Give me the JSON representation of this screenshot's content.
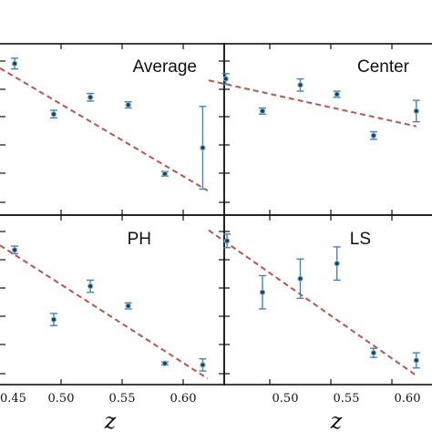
{
  "chart_data": [
    {
      "type": "scatter",
      "title": "Average",
      "xlabel": "z",
      "xlim": [
        0.45,
        0.62
      ],
      "ylim": [
        0,
        1
      ],
      "points": [
        {
          "x": 0.462,
          "y": 0.93,
          "err": 0.035
        },
        {
          "x": 0.494,
          "y": 0.6,
          "err": 0.025
        },
        {
          "x": 0.524,
          "y": 0.71,
          "err": 0.025
        },
        {
          "x": 0.555,
          "y": 0.66,
          "err": 0.02
        },
        {
          "x": 0.585,
          "y": 0.21,
          "err": 0.015
        },
        {
          "x": 0.616,
          "y": 0.38,
          "err": 0.27
        }
      ],
      "fit": {
        "x": [
          0.45,
          0.62
        ],
        "y": [
          0.9,
          0.1
        ]
      }
    },
    {
      "type": "scatter",
      "title": "Center",
      "xlabel": "z",
      "xlim": [
        0.45,
        0.62
      ],
      "ylim": [
        0,
        1
      ],
      "points": [
        {
          "x": 0.464,
          "y": 0.83,
          "err": 0.035
        },
        {
          "x": 0.494,
          "y": 0.62,
          "err": 0.02
        },
        {
          "x": 0.525,
          "y": 0.79,
          "err": 0.04
        },
        {
          "x": 0.555,
          "y": 0.73,
          "err": 0.02
        },
        {
          "x": 0.585,
          "y": 0.46,
          "err": 0.025
        },
        {
          "x": 0.62,
          "y": 0.62,
          "err": 0.07
        }
      ],
      "fit": {
        "x": [
          0.45,
          0.62
        ],
        "y": [
          0.82,
          0.52
        ]
      }
    },
    {
      "type": "scatter",
      "title": "PH",
      "xlabel": "z",
      "xlim": [
        0.45,
        0.62
      ],
      "ylim": [
        0,
        1
      ],
      "points": [
        {
          "x": 0.462,
          "y": 0.83,
          "err": 0.025
        },
        {
          "x": 0.494,
          "y": 0.37,
          "err": 0.04
        },
        {
          "x": 0.524,
          "y": 0.59,
          "err": 0.04
        },
        {
          "x": 0.555,
          "y": 0.46,
          "err": 0.02
        },
        {
          "x": 0.585,
          "y": 0.08,
          "err": 0.01
        },
        {
          "x": 0.616,
          "y": 0.07,
          "err": 0.04
        }
      ],
      "fit": {
        "x": [
          0.45,
          0.62
        ],
        "y": [
          0.86,
          -0.02
        ]
      }
    },
    {
      "type": "scatter",
      "title": "LS",
      "xlabel": "z",
      "xlim": [
        0.45,
        0.62
      ],
      "ylim": [
        0,
        1
      ],
      "points": [
        {
          "x": 0.465,
          "y": 0.89,
          "err": 0.045
        },
        {
          "x": 0.494,
          "y": 0.55,
          "err": 0.11
        },
        {
          "x": 0.525,
          "y": 0.64,
          "err": 0.13
        },
        {
          "x": 0.555,
          "y": 0.74,
          "err": 0.11
        },
        {
          "x": 0.585,
          "y": 0.15,
          "err": 0.03
        },
        {
          "x": 0.62,
          "y": 0.1,
          "err": 0.05
        }
      ],
      "fit": {
        "x": [
          0.45,
          0.62
        ],
        "y": [
          0.96,
          0.0
        ]
      }
    }
  ],
  "x_tick_labels": [
    "0.45",
    "0.50",
    "0.55",
    "0.60"
  ],
  "x_tick_values": [
    0.45,
    0.5,
    0.55,
    0.6
  ],
  "axis_label": "z"
}
